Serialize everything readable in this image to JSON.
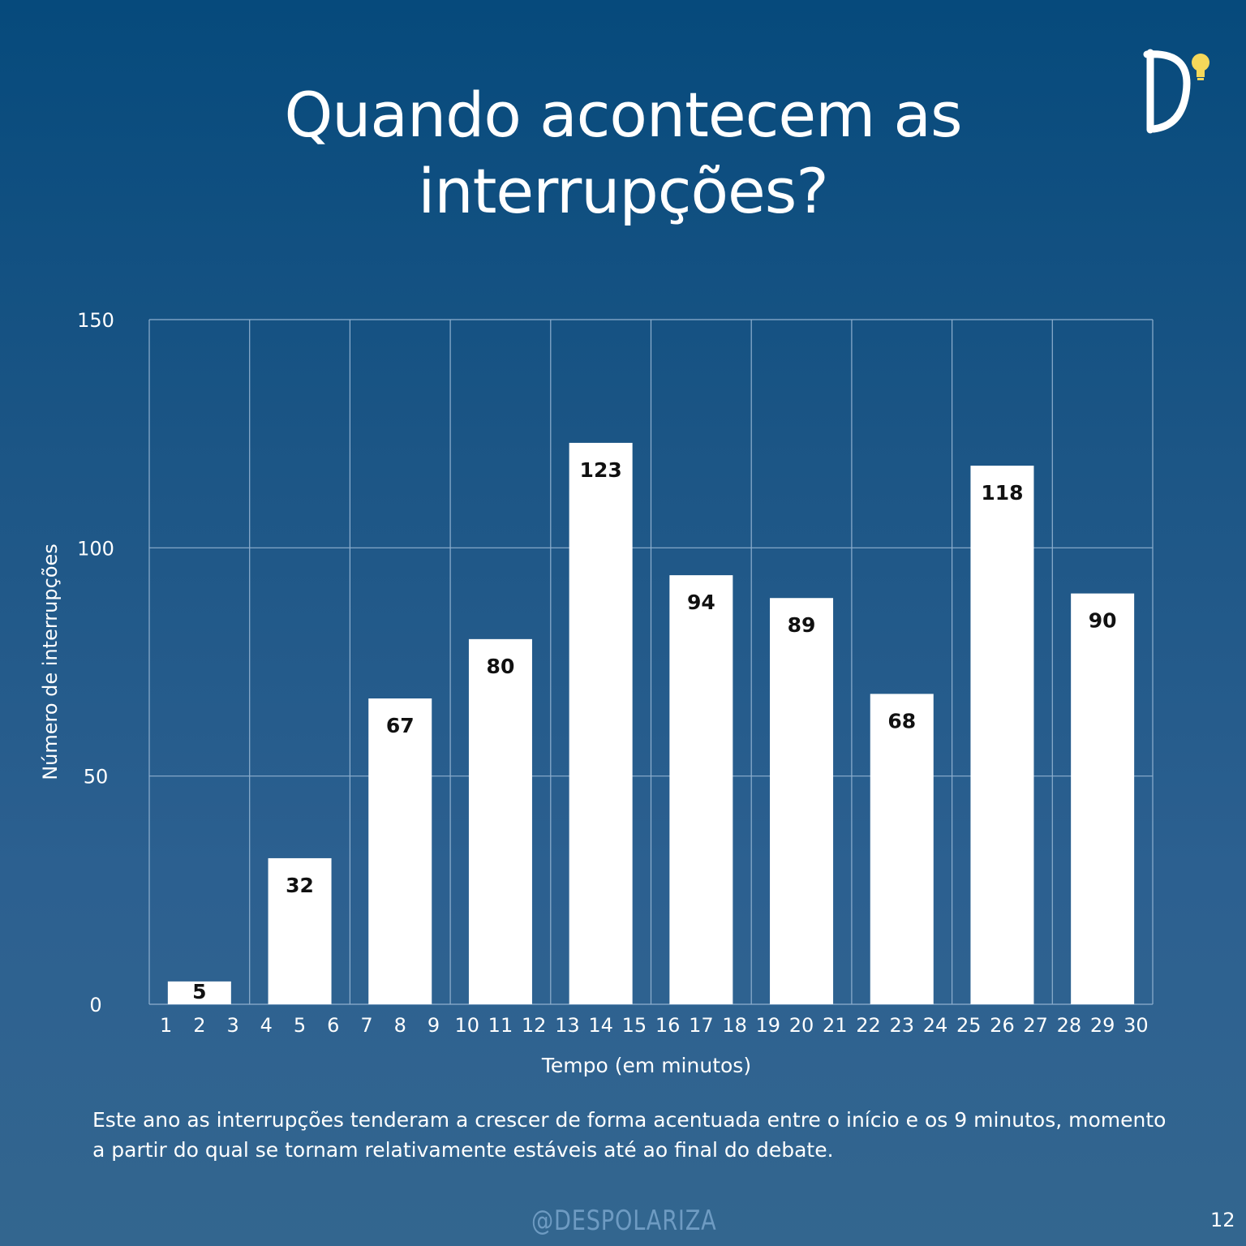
{
  "title_line1": "Quando acontecem as",
  "title_line2": "interrupções?",
  "logo": {
    "text": "D",
    "icon": "lightbulb-icon",
    "bulb_color": "#f5d85a"
  },
  "chart_data": {
    "type": "bar",
    "title": "Quando acontecem as interrupções?",
    "xlabel": "Tempo (em minutos)",
    "ylabel": "Número de interrupções",
    "ylim": [
      0,
      150
    ],
    "yticks": [
      0,
      50,
      100,
      150
    ],
    "xticks": [
      "1",
      "2",
      "3",
      "4",
      "5",
      "6",
      "7",
      "8",
      "9",
      "10",
      "11",
      "12",
      "13",
      "14",
      "15",
      "16",
      "17",
      "18",
      "19",
      "20",
      "21",
      "22",
      "23",
      "24",
      "25",
      "26",
      "27",
      "28",
      "29",
      "30"
    ],
    "categories": [
      "1-3",
      "4-6",
      "7-9",
      "10-12",
      "13-15",
      "16-18",
      "19-21",
      "22-24",
      "25-27",
      "28-30"
    ],
    "values": [
      5,
      32,
      67,
      80,
      123,
      94,
      89,
      68,
      118,
      90
    ],
    "grid": true,
    "bar_color": "#ffffff"
  },
  "caption": "Este ano as interrupções tenderam a crescer de forma acentuada entre o início e os 9 minutos, momento a partir do qual se tornam relativamente estáveis até ao final do debate.",
  "handle": "@DESPOLARIZA",
  "page_number": "12"
}
